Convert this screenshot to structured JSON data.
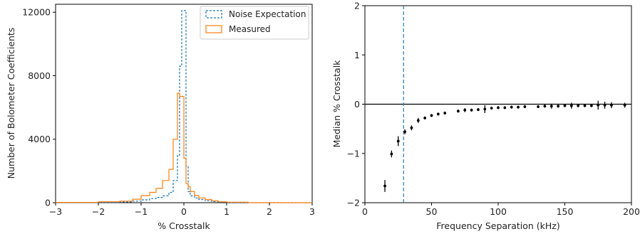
{
  "chart_data": [
    {
      "type": "histogram",
      "xlabel": "% Crosstalk",
      "ylabel": "Number of Bolometer Coefficients",
      "xlim": [
        -3,
        3
      ],
      "ylim": [
        0,
        12500
      ],
      "xticks": [
        -3,
        -2,
        -1,
        0,
        1,
        2,
        3
      ],
      "xtick_labels": [
        "−3",
        "−2",
        "−1",
        "0",
        "1",
        "2",
        "3"
      ],
      "yticks": [
        0,
        4000,
        8000,
        12000
      ],
      "ytick_labels": [
        "0",
        "4000",
        "8000",
        "12000"
      ],
      "legend_position": "top-right",
      "bin_edges": [
        -3.0,
        -2.0,
        -1.5,
        -1.2,
        -1.0,
        -0.8,
        -0.65,
        -0.5,
        -0.35,
        -0.25,
        -0.15,
        -0.1,
        -0.05,
        0.0,
        0.05,
        0.1,
        0.15,
        0.25,
        0.35,
        0.5,
        0.65,
        0.8,
        1.0,
        1.5,
        3.0
      ],
      "series": [
        {
          "name": "Noise Expectation",
          "color": "#1f77b4",
          "linestyle": "dashed",
          "counts": [
            0,
            20,
            50,
            100,
            180,
            260,
            330,
            430,
            650,
            1400,
            3000,
            8600,
            12100,
            12100,
            2300,
            700,
            430,
            300,
            200,
            120,
            70,
            40,
            20,
            0
          ]
        },
        {
          "name": "Measured",
          "color": "#ff7f0e",
          "linestyle": "solid",
          "counts": [
            20,
            60,
            100,
            220,
            450,
            650,
            900,
            1400,
            2100,
            4000,
            6900,
            6700,
            6700,
            2800,
            1200,
            1000,
            700,
            450,
            300,
            200,
            120,
            60,
            30,
            0
          ]
        }
      ]
    },
    {
      "type": "scatter",
      "xlabel": "Frequency Separation (kHz)",
      "ylabel": "Median % Crosstalk",
      "xlim": [
        0,
        200
      ],
      "ylim": [
        -2,
        2
      ],
      "xticks": [
        0,
        50,
        100,
        150,
        200
      ],
      "xtick_labels": [
        "0",
        "50",
        "100",
        "150",
        "200"
      ],
      "yticks": [
        -2,
        -1,
        0,
        1,
        2
      ],
      "ytick_labels": [
        "−2",
        "−1",
        "0",
        "1",
        "2"
      ],
      "hline_y": 0,
      "vline_x": 29,
      "vline_color": "#1f77b4",
      "points": [
        {
          "x": 15,
          "y": -1.66,
          "err": 0.12
        },
        {
          "x": 20,
          "y": -1.01,
          "err": 0.07
        },
        {
          "x": 25,
          "y": -0.75,
          "err": 0.1
        },
        {
          "x": 30,
          "y": -0.56,
          "err": 0.05
        },
        {
          "x": 35,
          "y": -0.48,
          "err": 0.05
        },
        {
          "x": 40,
          "y": -0.33,
          "err": 0.05
        },
        {
          "x": 45,
          "y": -0.28,
          "err": 0.03
        },
        {
          "x": 50,
          "y": -0.23,
          "err": 0.03
        },
        {
          "x": 55,
          "y": -0.2,
          "err": 0.03
        },
        {
          "x": 60,
          "y": -0.18,
          "err": 0.03
        },
        {
          "x": 70,
          "y": -0.14,
          "err": 0.03
        },
        {
          "x": 75,
          "y": -0.12,
          "err": 0.04
        },
        {
          "x": 80,
          "y": -0.12,
          "err": 0.03
        },
        {
          "x": 85,
          "y": -0.11,
          "err": 0.03
        },
        {
          "x": 90,
          "y": -0.1,
          "err": 0.08
        },
        {
          "x": 95,
          "y": -0.08,
          "err": 0.03
        },
        {
          "x": 100,
          "y": -0.07,
          "err": 0.03
        },
        {
          "x": 105,
          "y": -0.07,
          "err": 0.03
        },
        {
          "x": 110,
          "y": -0.06,
          "err": 0.03
        },
        {
          "x": 115,
          "y": -0.06,
          "err": 0.03
        },
        {
          "x": 120,
          "y": -0.05,
          "err": 0.03
        },
        {
          "x": 130,
          "y": -0.05,
          "err": 0.03
        },
        {
          "x": 135,
          "y": -0.04,
          "err": 0.03
        },
        {
          "x": 140,
          "y": -0.04,
          "err": 0.05
        },
        {
          "x": 145,
          "y": -0.04,
          "err": 0.03
        },
        {
          "x": 150,
          "y": -0.03,
          "err": 0.03
        },
        {
          "x": 155,
          "y": -0.03,
          "err": 0.06
        },
        {
          "x": 160,
          "y": -0.03,
          "err": 0.03
        },
        {
          "x": 165,
          "y": -0.03,
          "err": 0.03
        },
        {
          "x": 170,
          "y": -0.03,
          "err": 0.03
        },
        {
          "x": 175,
          "y": -0.02,
          "err": 0.09
        },
        {
          "x": 180,
          "y": -0.02,
          "err": 0.07
        },
        {
          "x": 185,
          "y": -0.02,
          "err": 0.06
        },
        {
          "x": 195,
          "y": -0.02,
          "err": 0.05
        }
      ]
    }
  ]
}
